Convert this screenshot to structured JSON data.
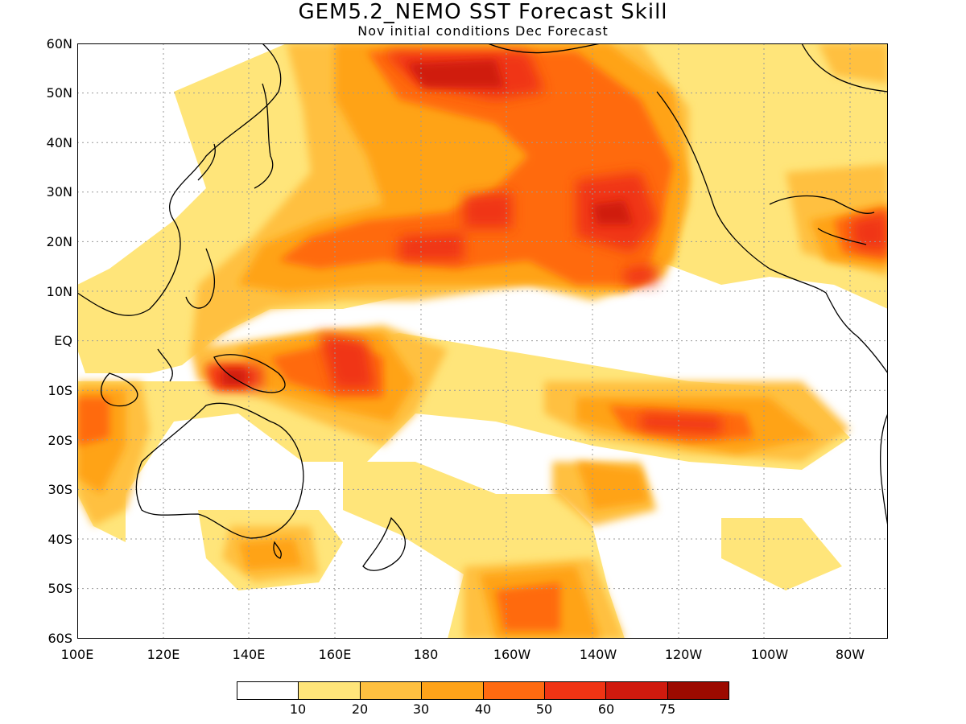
{
  "header": {
    "title": "GEM5.2_NEMO SST Forecast Skill",
    "subtitle": "Nov initial conditions  Dec Forecast"
  },
  "map": {
    "lat_labels": [
      "60N",
      "50N",
      "40N",
      "30N",
      "20N",
      "10N",
      "EQ",
      "10S",
      "20S",
      "30S",
      "40S",
      "50S",
      "60S"
    ],
    "lon_labels": [
      "100E",
      "120E",
      "140E",
      "160E",
      "180",
      "160W",
      "140W",
      "120W",
      "100W",
      "80W"
    ],
    "extent": {
      "lon_west": "100E",
      "lon_east": "70W",
      "lat_north": "60N",
      "lat_south": "60S"
    },
    "gridlines": "dotted"
  },
  "colorbar": {
    "colors": [
      "#ffffff",
      "#ffe57a",
      "#ffc040",
      "#ffa319",
      "#ff6a10",
      "#f03414",
      "#d01a0e",
      "#9c0a00"
    ],
    "labels": [
      "10",
      "20",
      "30",
      "40",
      "50",
      "60",
      "75"
    ]
  }
}
